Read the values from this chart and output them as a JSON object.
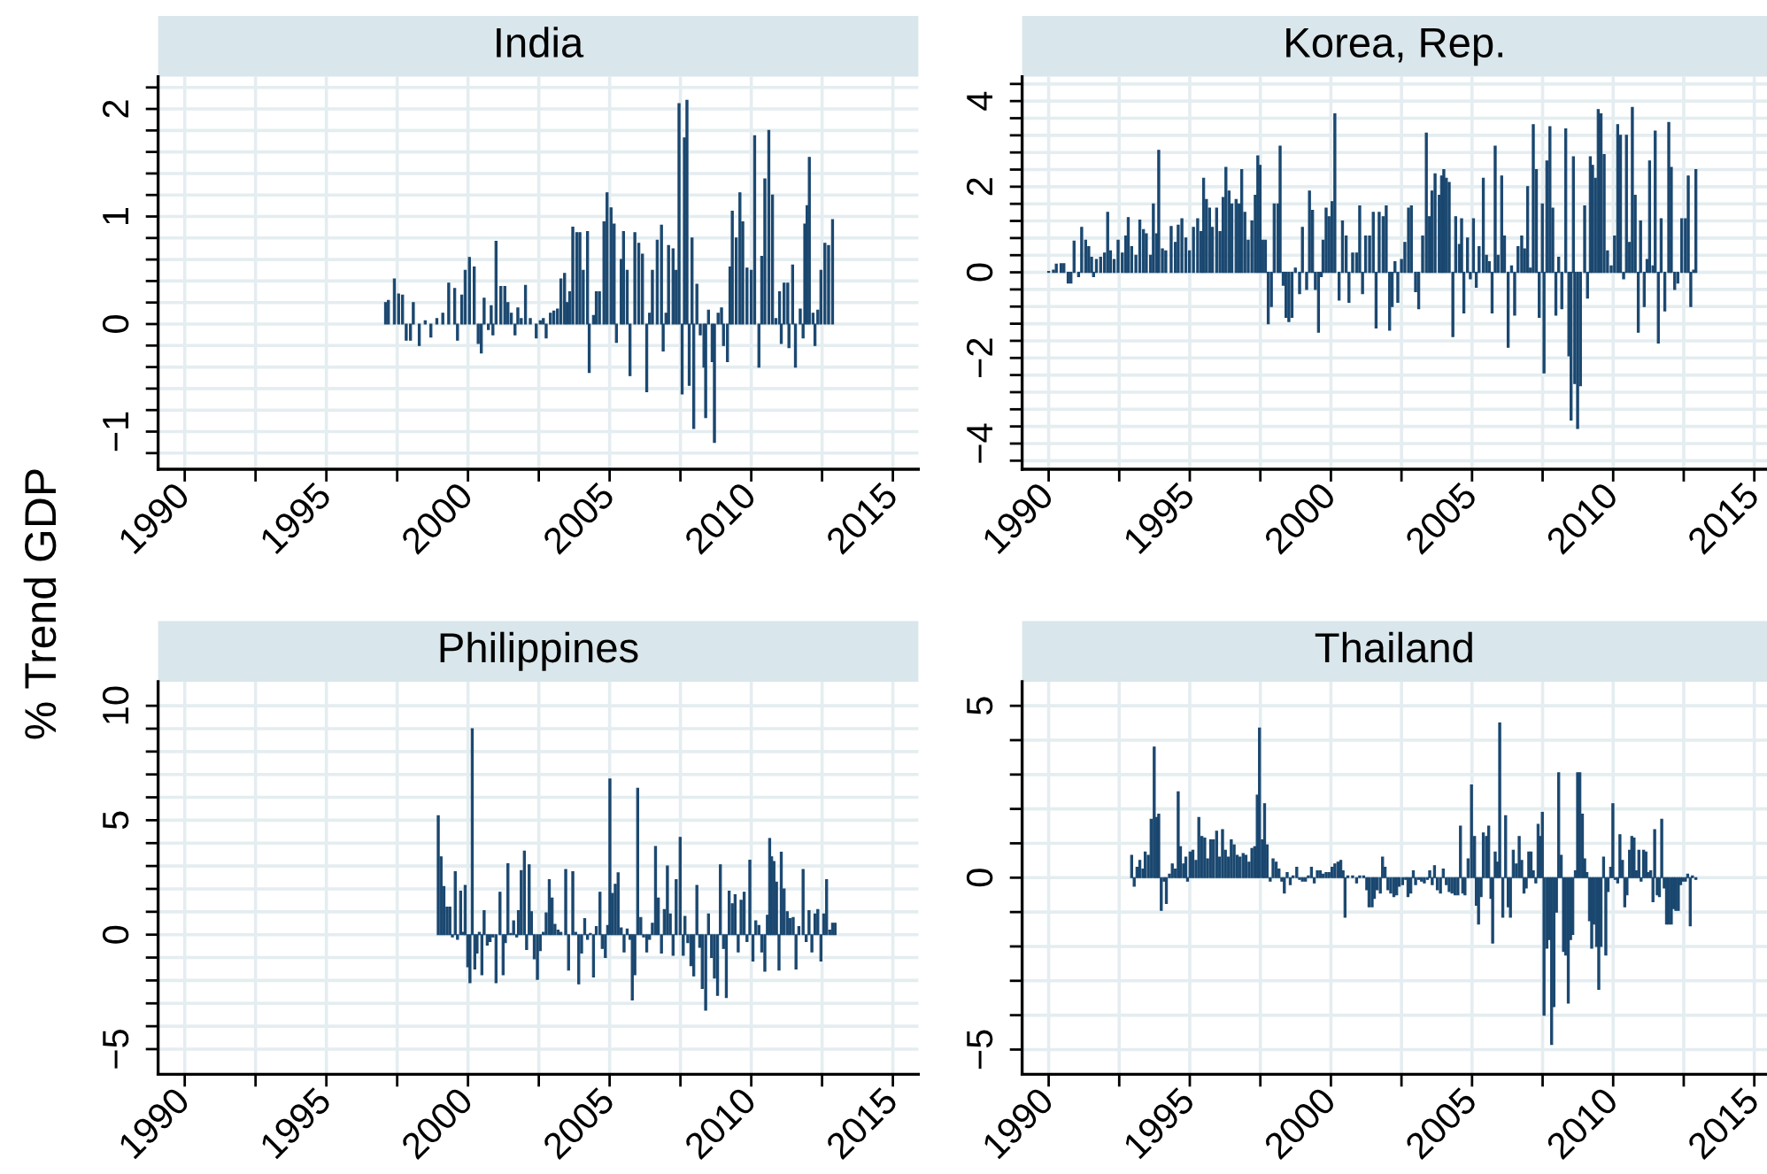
{
  "chart_data": [
    {
      "type": "bar",
      "title": "India",
      "ylabel": "% Trend GDP",
      "color": "#1a476f",
      "grid": true,
      "xlim": [
        1989.06,
        2015.9
      ],
      "ylim": [
        -1.35,
        2.3
      ],
      "xticks": [
        1990,
        {
          "value": 1992.5,
          "label": null
        },
        1995,
        {
          "value": 1997.5,
          "label": null
        },
        2000,
        {
          "value": 2002.5,
          "label": null
        },
        2005,
        {
          "value": 2007.5,
          "label": null
        },
        2010,
        {
          "value": 2012.5,
          "label": null
        },
        2015
      ],
      "yticks": [
        {
          "value": -1.2,
          "label": null
        },
        -1,
        {
          "value": -0.8,
          "label": null
        },
        {
          "value": -0.6,
          "label": null
        },
        {
          "value": -0.4,
          "label": null
        },
        {
          "value": -0.2,
          "label": null
        },
        0,
        {
          "value": 0.2,
          "label": null
        },
        {
          "value": 0.4,
          "label": null
        },
        {
          "value": 0.6,
          "label": null
        },
        {
          "value": 0.8,
          "label": null
        },
        1,
        {
          "value": 1.2,
          "label": null
        },
        {
          "value": 1.4,
          "label": null
        },
        {
          "value": 1.6,
          "label": null
        },
        {
          "value": 1.8,
          "label": null
        },
        2,
        {
          "value": 2.2,
          "label": null
        }
      ],
      "x": [
        1997.09,
        1997.19,
        1997.4,
        1997.55,
        1997.69,
        1997.82,
        1997.97,
        1998.07,
        1998.28,
        1998.49,
        1998.69,
        1998.9,
        1999.11,
        1999.32,
        1999.53,
        1999.63,
        1999.78,
        1999.9,
        2000.05,
        2000.22,
        2000.36,
        2000.47,
        2000.57,
        2000.72,
        2000.82,
        2000.88,
        2000.99,
        2001.16,
        2001.3,
        2001.41,
        2001.53,
        2001.66,
        2001.76,
        2001.88,
        2002.03,
        2002.2,
        2002.41,
        2002.55,
        2002.66,
        2002.76,
        2002.91,
        2003.03,
        2003.16,
        2003.28,
        2003.41,
        2003.49,
        2003.59,
        2003.7,
        2003.84,
        2003.95,
        2004.07,
        2004.22,
        2004.28,
        2004.43,
        2004.53,
        2004.64,
        2004.8,
        2004.91,
        2005.05,
        2005.16,
        2005.24,
        2005.41,
        2005.49,
        2005.62,
        2005.72,
        2005.89,
        2006.03,
        2006.16,
        2006.31,
        2006.41,
        2006.51,
        2006.68,
        2006.83,
        2006.89,
        2006.99,
        2007.08,
        2007.24,
        2007.35,
        2007.45,
        2007.56,
        2007.64,
        2007.73,
        2007.81,
        2007.91,
        2007.97,
        2008.08,
        2008.2,
        2008.33,
        2008.39,
        2008.49,
        2008.62,
        2008.7,
        2008.83,
        2008.95,
        2009.02,
        2009.16,
        2009.25,
        2009.33,
        2009.47,
        2009.6,
        2009.7,
        2009.85,
        2010.0,
        2010.12,
        2010.27,
        2010.37,
        2010.48,
        2010.62,
        2010.75,
        2010.87,
        2011.0,
        2011.06,
        2011.16,
        2011.29,
        2011.33,
        2011.46,
        2011.56,
        2011.73,
        2011.83,
        2011.89,
        2011.97,
        2012.05,
        2012.18,
        2012.25,
        2012.35,
        2012.46,
        2012.6,
        2012.73,
        2012.87
      ],
      "values": [
        0.2,
        0.22,
        0.42,
        0.28,
        0.27,
        -0.15,
        -0.15,
        0.2,
        -0.2,
        0.03,
        -0.12,
        0.05,
        0.1,
        0.38,
        0.33,
        -0.15,
        0.27,
        0.5,
        0.62,
        0.53,
        -0.18,
        -0.27,
        0.24,
        -0.05,
        0.17,
        -0.1,
        0.77,
        0.35,
        0.35,
        0.2,
        0.1,
        -0.1,
        0.15,
        0.05,
        0.36,
        0.05,
        -0.13,
        0.03,
        0.05,
        -0.13,
        0.1,
        0.12,
        0.14,
        0.42,
        0.47,
        0.2,
        0.3,
        0.9,
        0.85,
        0.85,
        0.5,
        0.86,
        -0.45,
        0.08,
        0.3,
        0.3,
        0.95,
        1.22,
        1.08,
        0.93,
        -0.17,
        0.6,
        0.86,
        0.5,
        -0.48,
        0.85,
        0.75,
        0.65,
        -0.63,
        0.1,
        0.5,
        0.78,
        0.92,
        -0.25,
        0.1,
        0.73,
        0.7,
        0.5,
        2.05,
        -0.65,
        1.73,
        2.08,
        -0.57,
        0.8,
        -0.97,
        0.37,
        -0.1,
        -0.4,
        -0.87,
        0.13,
        -0.35,
        -1.1,
        0.1,
        0.15,
        -0.2,
        -0.35,
        0.53,
        1.05,
        0.8,
        1.22,
        0.95,
        0.52,
        0.5,
        1.75,
        -0.4,
        0.63,
        1.35,
        1.8,
        1.2,
        0.05,
        0.3,
        -0.18,
        0.38,
        0.38,
        -0.22,
        0.55,
        -0.4,
        0.14,
        -0.13,
        0.93,
        1.1,
        1.55,
        0.1,
        -0.2,
        0.13,
        0.5,
        0.75,
        0.73,
        0.97
      ]
    },
    {
      "type": "bar",
      "title": "Korea, Rep.",
      "color": "#1a476f",
      "grid": true,
      "xlim": [
        1989.06,
        2015.45
      ],
      "ylim": [
        -4.6,
        4.57
      ],
      "xticks": [
        1990,
        {
          "value": 1992.5,
          "label": null
        },
        1995,
        {
          "value": 1997.5,
          "label": null
        },
        2000,
        {
          "value": 2002.5,
          "label": null
        },
        2005,
        {
          "value": 2007.5,
          "label": null
        },
        2010,
        {
          "value": 2012.5,
          "label": null
        },
        2015
      ],
      "yticks": [
        {
          "value": -4.4,
          "label": null
        },
        -4,
        {
          "value": -3.6,
          "label": null
        },
        {
          "value": -3.2,
          "label": null
        },
        {
          "value": -2.8,
          "label": null
        },
        {
          "value": -2.4,
          "label": null
        },
        -2,
        {
          "value": -1.6,
          "label": null
        },
        {
          "value": -1.2,
          "label": null
        },
        {
          "value": -0.8,
          "label": null
        },
        {
          "value": -0.4,
          "label": null
        },
        0,
        {
          "value": 0.4,
          "label": null
        },
        {
          "value": 0.8,
          "label": null
        },
        {
          "value": 1.2,
          "label": null
        },
        {
          "value": 1.6,
          "label": null
        },
        2,
        {
          "value": 2.4,
          "label": null
        },
        {
          "value": 2.8,
          "label": null
        },
        {
          "value": 3.2,
          "label": null
        },
        {
          "value": 3.6,
          "label": null
        },
        4,
        {
          "value": 4.4,
          "label": null
        }
      ],
      "x": [
        1990.0,
        1990.17,
        1990.27,
        1990.44,
        1990.54,
        1990.69,
        1990.79,
        1990.9,
        1991.06,
        1991.17,
        1991.31,
        1991.42,
        1991.52,
        1991.59,
        1991.69,
        1991.84,
        1991.98,
        1992.09,
        1992.19,
        1992.32,
        1992.46,
        1992.61,
        1992.73,
        1992.82,
        1992.94,
        1993.09,
        1993.23,
        1993.36,
        1993.46,
        1993.61,
        1993.71,
        1993.82,
        1993.9,
        1994.03,
        1994.15,
        1994.34,
        1994.49,
        1994.59,
        1994.72,
        1994.86,
        1994.99,
        1995.13,
        1995.28,
        1995.4,
        1995.49,
        1995.59,
        1995.7,
        1995.8,
        1995.95,
        1996.07,
        1996.18,
        1996.28,
        1996.39,
        1996.49,
        1996.64,
        1996.74,
        1996.84,
        1996.95,
        1997.07,
        1997.2,
        1997.32,
        1997.41,
        1997.49,
        1997.58,
        1997.68,
        1997.78,
        1997.89,
        1997.99,
        1998.12,
        1998.2,
        1998.31,
        1998.41,
        1998.51,
        1998.62,
        1998.74,
        1998.89,
        1998.99,
        1999.14,
        1999.24,
        1999.35,
        1999.45,
        1999.56,
        1999.66,
        1999.72,
        1999.83,
        1999.93,
        2000.04,
        2000.14,
        2000.29,
        2000.41,
        2000.54,
        2000.64,
        2000.77,
        2000.91,
        2001.02,
        2001.12,
        2001.23,
        2001.37,
        2001.5,
        2001.6,
        2001.71,
        2001.85,
        2001.96,
        2002.08,
        2002.17,
        2002.27,
        2002.37,
        2002.5,
        2002.62,
        2002.75,
        2002.85,
        2003.0,
        2003.11,
        2003.25,
        2003.38,
        2003.48,
        2003.58,
        2003.69,
        2003.84,
        2003.92,
        2004.0,
        2004.09,
        2004.19,
        2004.32,
        2004.42,
        2004.55,
        2004.63,
        2004.71,
        2004.84,
        2004.94,
        2005.05,
        2005.15,
        2005.25,
        2005.4,
        2005.51,
        2005.61,
        2005.71,
        2005.82,
        2005.92,
        2006.05,
        2006.15,
        2006.28,
        2006.4,
        2006.51,
        2006.63,
        2006.76,
        2006.86,
        2006.97,
        2007.07,
        2007.17,
        2007.28,
        2007.38,
        2007.49,
        2007.55,
        2007.65,
        2007.76,
        2007.86,
        2007.97,
        2008.07,
        2008.18,
        2008.32,
        2008.43,
        2008.51,
        2008.59,
        2008.64,
        2008.74,
        2008.84,
        2008.99,
        2009.09,
        2009.19,
        2009.27,
        2009.37,
        2009.47,
        2009.57,
        2009.68,
        2009.8,
        2009.93,
        2010.05,
        2010.16,
        2010.26,
        2010.37,
        2010.47,
        2010.58,
        2010.68,
        2010.78,
        2010.89,
        2010.97,
        2011.1,
        2011.2,
        2011.29,
        2011.41,
        2011.49,
        2011.6,
        2011.7,
        2011.83,
        2011.97,
        2012.06,
        2012.18,
        2012.29,
        2012.43,
        2012.56,
        2012.66,
        2012.75,
        2012.85,
        2012.93
      ],
      "values": [
        0.02,
        0.05,
        0.19,
        0.2,
        0.2,
        -0.25,
        -0.25,
        0.73,
        -0.1,
        1.05,
        0.75,
        0.6,
        0.35,
        -0.1,
        0.3,
        0.35,
        0.45,
        1.4,
        0.5,
        0.3,
        0.75,
        0.45,
        0.85,
        1.28,
        0.6,
        0.4,
        1.22,
        1.0,
        0.9,
        0.4,
        1.6,
        0.9,
        2.85,
        0.55,
        0.5,
        1.07,
        0.7,
        1.1,
        1.25,
        0.8,
        0.5,
        1.05,
        1.25,
        0.95,
        2.2,
        1.7,
        1.5,
        1.05,
        1.5,
        0.95,
        1.75,
        2.45,
        1.9,
        1.6,
        1.7,
        1.6,
        2.4,
        1.4,
        0.75,
        1.2,
        1.8,
        2.72,
        2.5,
        0.75,
        0.75,
        -1.2,
        -0.8,
        1.6,
        1.6,
        2.95,
        -0.3,
        -1.05,
        -1.15,
        -1.05,
        0.1,
        -0.5,
        1.05,
        -0.4,
        1.9,
        1.45,
        -0.4,
        -1.4,
        -0.1,
        0.75,
        1.5,
        1.3,
        1.65,
        3.7,
        -0.65,
        1.2,
        0.85,
        -0.7,
        0.45,
        0.45,
        1.55,
        -0.5,
        0.85,
        0.85,
        1.4,
        -1.3,
        1.4,
        1.3,
        1.55,
        -1.35,
        -0.8,
        0.25,
        -0.7,
        0.3,
        0.7,
        1.5,
        1.55,
        -0.45,
        -0.85,
        0.85,
        3.25,
        1.3,
        1.9,
        2.3,
        1.8,
        2.25,
        2.4,
        2.2,
        2.1,
        -1.5,
        1.3,
        0.65,
        1.25,
        -0.95,
        0.8,
        -0.15,
        1.25,
        -0.35,
        0.6,
        2.2,
        0.4,
        0.25,
        -0.95,
        2.95,
        0.4,
        2.25,
        0.85,
        -1.75,
        0.15,
        -1.0,
        0.6,
        0.85,
        0.55,
        2.0,
        0.1,
        3.45,
        2.4,
        -1.05,
        1.6,
        -2.35,
        2.6,
        3.4,
        1.5,
        -1.0,
        0.35,
        -0.85,
        3.35,
        -1.95,
        -3.45,
        2.7,
        -2.6,
        -3.65,
        -2.65,
        1.55,
        -0.6,
        2.7,
        2.5,
        2.2,
        3.8,
        3.7,
        2.75,
        0.5,
        0.15,
        0.85,
        3.45,
        3.2,
        -0.15,
        3.2,
        0.7,
        3.85,
        1.8,
        -1.4,
        1.2,
        -0.8,
        0.3,
        2.6,
        0.15,
        3.3,
        -1.65,
        1.25,
        -0.9,
        3.5,
        2.45,
        -0.4,
        -0.25,
        1.25,
        1.25,
        2.25,
        -0.8,
        0.05,
        2.4
      ]
    },
    {
      "type": "bar",
      "title": "Philippines",
      "color": "#1a476f",
      "grid": true,
      "xlim": [
        1989.06,
        2015.9
      ],
      "ylim": [
        -6.1,
        11.05
      ],
      "xticks": [
        1990,
        {
          "value": 1992.5,
          "label": null
        },
        1995,
        {
          "value": 1997.5,
          "label": null
        },
        2000,
        {
          "value": 2002.5,
          "label": null
        },
        2005,
        {
          "value": 2007.5,
          "label": null
        },
        2010,
        {
          "value": 2012.5,
          "label": null
        },
        2015
      ],
      "yticks": [
        -5,
        {
          "value": -4,
          "label": null
        },
        {
          "value": -3,
          "label": null
        },
        {
          "value": -2,
          "label": null
        },
        {
          "value": -1,
          "label": null
        },
        0,
        {
          "value": 1,
          "label": null
        },
        {
          "value": 2,
          "label": null
        },
        {
          "value": 3,
          "label": null
        },
        {
          "value": 4,
          "label": null
        },
        5,
        {
          "value": 6,
          "label": null
        },
        {
          "value": 7,
          "label": null
        },
        {
          "value": 8,
          "label": null
        },
        {
          "value": 9,
          "label": null
        },
        10
      ],
      "x": [
        1998.95,
        1999.05,
        1999.15,
        1999.26,
        1999.36,
        1999.45,
        1999.55,
        1999.63,
        1999.74,
        1999.84,
        1999.9,
        1999.99,
        2000.07,
        2000.15,
        2000.24,
        2000.32,
        2000.4,
        2000.49,
        2000.57,
        2000.68,
        2000.78,
        2000.88,
        2000.99,
        2001.13,
        2001.24,
        2001.32,
        2001.41,
        2001.51,
        2001.61,
        2001.72,
        2001.78,
        2001.88,
        2001.99,
        2002.07,
        2002.16,
        2002.24,
        2002.34,
        2002.45,
        2002.55,
        2002.66,
        2002.76,
        2002.87,
        2002.97,
        2003.07,
        2003.18,
        2003.28,
        2003.45,
        2003.55,
        2003.7,
        2003.8,
        2003.91,
        2004.01,
        2004.12,
        2004.22,
        2004.32,
        2004.43,
        2004.53,
        2004.66,
        2004.74,
        2004.85,
        2004.93,
        2005.01,
        2005.1,
        2005.2,
        2005.3,
        2005.41,
        2005.51,
        2005.62,
        2005.72,
        2005.8,
        2005.89,
        2005.99,
        2006.1,
        2006.2,
        2006.31,
        2006.41,
        2006.51,
        2006.62,
        2006.72,
        2006.83,
        2006.93,
        2007.04,
        2007.14,
        2007.24,
        2007.35,
        2007.49,
        2007.6,
        2007.66,
        2007.76,
        2007.87,
        2007.97,
        2008.08,
        2008.18,
        2008.27,
        2008.39,
        2008.49,
        2008.6,
        2008.7,
        2008.81,
        2008.91,
        2009.02,
        2009.12,
        2009.22,
        2009.33,
        2009.43,
        2009.54,
        2009.64,
        2009.75,
        2009.85,
        2009.95,
        2010.06,
        2010.16,
        2010.27,
        2010.37,
        2010.48,
        2010.57,
        2010.65,
        2010.72,
        2010.8,
        2010.89,
        2010.98,
        2011.06,
        2011.16,
        2011.27,
        2011.37,
        2011.48,
        2011.58,
        2011.68,
        2011.83,
        2011.94,
        2012.04,
        2012.14,
        2012.25,
        2012.35,
        2012.46,
        2012.56,
        2012.66,
        2012.77,
        2012.87,
        2012.96
      ],
      "values": [
        5.2,
        3.4,
        2.1,
        1.2,
        1.2,
        -0.1,
        2.75,
        -0.2,
        1.9,
        0.1,
        2.15,
        -1.4,
        -2.1,
        9.0,
        -1.5,
        -0.8,
        0.1,
        -1.75,
        1.05,
        -0.45,
        -0.3,
        -0.1,
        -2.1,
        1.85,
        -1.75,
        -0.35,
        3.1,
        0.05,
        0.6,
        -0.1,
        1.05,
        2.8,
        3.65,
        -0.65,
        3.05,
        1.0,
        -1.05,
        -1.95,
        -0.7,
        0.1,
        0.95,
        2.4,
        1.6,
        0.45,
        0.2,
        0.1,
        2.85,
        -1.55,
        2.75,
        0.1,
        -2.15,
        -0.8,
        0.7,
        -0.2,
        0.05,
        -1.85,
        0.35,
        1.85,
        -0.6,
        -1.0,
        0.4,
        6.8,
        1.8,
        2.2,
        2.7,
        0.3,
        -0.75,
        0.25,
        -0.2,
        -2.85,
        -1.75,
        6.4,
        0.75,
        -0.1,
        -0.75,
        -0.2,
        0.5,
        3.85,
        1.6,
        -0.8,
        1.1,
        3.0,
        0.9,
        -0.9,
        2.4,
        4.25,
        -0.9,
        0.8,
        -0.35,
        -1.35,
        -1.8,
        2.15,
        -0.55,
        -2.35,
        -3.3,
        0.9,
        -1.0,
        -1.9,
        -2.65,
        3.05,
        -0.6,
        -2.75,
        1.9,
        1.35,
        1.75,
        -0.75,
        1.5,
        1.85,
        -0.3,
        3.25,
        -1.15,
        0.6,
        0.4,
        -0.75,
        -1.6,
        0.85,
        4.2,
        3.4,
        3.2,
        2.3,
        -1.55,
        3.6,
        2.0,
        1.0,
        0.7,
        0.75,
        -1.5,
        0.35,
        2.85,
        -0.3,
        1.05,
        -0.75,
        0.9,
        1.1,
        -1.15,
        0.9,
        2.4,
        0.2,
        0.5,
        0.5
      ]
    },
    {
      "type": "bar",
      "title": "Thailand",
      "color": "#1a476f",
      "grid": true,
      "xlim": [
        1989.06,
        2015.45
      ],
      "ylim": [
        -5.72,
        5.7
      ],
      "xticks": [
        1990,
        {
          "value": 1992.5,
          "label": null
        },
        1995,
        {
          "value": 1997.5,
          "label": null
        },
        2000,
        {
          "value": 2002.5,
          "label": null
        },
        2005,
        {
          "value": 2007.5,
          "label": null
        },
        2010,
        {
          "value": 2012.5,
          "label": null
        },
        2015
      ],
      "yticks": [
        -5,
        {
          "value": -4,
          "label": null
        },
        {
          "value": -3,
          "label": null
        },
        {
          "value": -2,
          "label": null
        },
        {
          "value": -1,
          "label": null
        },
        0,
        {
          "value": 1,
          "label": null
        },
        {
          "value": 2,
          "label": null
        },
        {
          "value": 3,
          "label": null
        },
        {
          "value": 4,
          "label": null
        },
        5
      ],
      "x": [
        1992.94,
        1993.03,
        1993.13,
        1993.23,
        1993.34,
        1993.42,
        1993.53,
        1993.63,
        1993.74,
        1993.82,
        1993.9,
        1993.99,
        1994.09,
        1994.17,
        1994.28,
        1994.38,
        1994.49,
        1994.59,
        1994.67,
        1994.78,
        1994.86,
        1994.92,
        1995.01,
        1995.11,
        1995.22,
        1995.32,
        1995.43,
        1995.53,
        1995.63,
        1995.74,
        1995.84,
        1995.95,
        1996.05,
        1996.16,
        1996.26,
        1996.36,
        1996.47,
        1996.57,
        1996.68,
        1996.78,
        1996.89,
        1996.99,
        1997.1,
        1997.2,
        1997.3,
        1997.39,
        1997.47,
        1997.57,
        1997.65,
        1997.74,
        1997.85,
        1997.95,
        1998.06,
        1998.16,
        1998.26,
        1998.35,
        1998.45,
        1998.56,
        1998.66,
        1998.79,
        1998.89,
        1998.99,
        1999.1,
        1999.2,
        1999.31,
        1999.41,
        1999.52,
        1999.62,
        1999.72,
        1999.83,
        1999.93,
        2000.04,
        2000.14,
        2000.25,
        2000.35,
        2000.43,
        2000.5,
        2000.6,
        2000.77,
        2000.91,
        2001.02,
        2001.16,
        2001.27,
        2001.35,
        2001.46,
        2001.54,
        2001.64,
        2001.75,
        2001.83,
        2001.92,
        2002.02,
        2002.12,
        2002.23,
        2002.33,
        2002.42,
        2002.54,
        2002.65,
        2002.73,
        2002.83,
        2002.92,
        2003.0,
        2003.11,
        2003.21,
        2003.31,
        2003.42,
        2003.5,
        2003.59,
        2003.67,
        2003.77,
        2003.88,
        2003.98,
        2004.09,
        2004.19,
        2004.29,
        2004.4,
        2004.5,
        2004.59,
        2004.67,
        2004.75,
        2004.86,
        2004.98,
        2005.09,
        2005.15,
        2005.23,
        2005.32,
        2005.4,
        2005.51,
        2005.59,
        2005.67,
        2005.73,
        2005.82,
        2005.9,
        2005.98,
        2006.09,
        2006.19,
        2006.28,
        2006.36,
        2006.46,
        2006.57,
        2006.67,
        2006.76,
        2006.84,
        2006.92,
        2007.01,
        2007.09,
        2007.17,
        2007.26,
        2007.34,
        2007.42,
        2007.49,
        2007.55,
        2007.65,
        2007.74,
        2007.82,
        2007.9,
        2007.99,
        2008.07,
        2008.16,
        2008.24,
        2008.32,
        2008.41,
        2008.49,
        2008.57,
        2008.66,
        2008.74,
        2008.82,
        2008.91,
        2008.99,
        2009.07,
        2009.16,
        2009.24,
        2009.32,
        2009.41,
        2009.49,
        2009.57,
        2009.66,
        2009.74,
        2009.82,
        2009.91,
        2009.99,
        2010.07,
        2010.16,
        2010.24,
        2010.33,
        2010.41,
        2010.49,
        2010.58,
        2010.66,
        2010.74,
        2010.83,
        2010.91,
        2010.99,
        2011.08,
        2011.16,
        2011.24,
        2011.33,
        2011.41,
        2011.47,
        2011.56,
        2011.64,
        2011.72,
        2011.81,
        2011.89,
        2011.97,
        2012.06,
        2012.14,
        2012.22,
        2012.31,
        2012.39,
        2012.47,
        2012.56,
        2012.64,
        2012.73,
        2012.81,
        2012.93
      ],
      "values": [
        0.65,
        -0.25,
        0.3,
        0.5,
        0.25,
        0.75,
        0.65,
        1.7,
        3.8,
        1.75,
        1.85,
        -0.95,
        -0.1,
        -0.75,
        0.1,
        0.4,
        0.25,
        2.5,
        0.9,
        0.4,
        0.6,
        -0.1,
        0.75,
        0.8,
        0.5,
        1.75,
        1.2,
        1.15,
        0.55,
        1.1,
        1.1,
        1.35,
        0.6,
        1.4,
        0.8,
        0.6,
        1.1,
        0.95,
        0.65,
        0.6,
        0.7,
        0.65,
        0.45,
        0.85,
        0.9,
        2.4,
        4.35,
        1.1,
        2.15,
        0.95,
        -0.1,
        0.55,
        0.45,
        0.25,
        -0.1,
        -0.45,
        0.15,
        -0.2,
        0.05,
        0.3,
        -0.05,
        -0.1,
        -0.1,
        0.05,
        0.3,
        -0.15,
        0.2,
        0.2,
        0.1,
        0.15,
        0.15,
        0.3,
        0.4,
        0.45,
        0.5,
        0.2,
        -1.15,
        0.05,
        0.05,
        -0.15,
        0.05,
        0.05,
        -0.35,
        -0.85,
        -0.85,
        -0.6,
        -0.35,
        -0.45,
        0.6,
        0.3,
        -0.35,
        -0.45,
        -0.55,
        -0.5,
        -0.25,
        -0.2,
        -0.05,
        -0.55,
        -0.45,
        0.2,
        -0.2,
        -0.05,
        -0.1,
        -0.15,
        -0.05,
        0.2,
        -0.2,
        0.35,
        -0.35,
        -0.45,
        0.25,
        -0.2,
        -0.4,
        -0.45,
        -0.5,
        -0.5,
        1.5,
        -0.45,
        -0.5,
        0.55,
        2.7,
        1.2,
        -0.8,
        -1.35,
        -0.55,
        1.3,
        1.2,
        1.5,
        -0.6,
        -1.9,
        0.75,
        0.45,
        4.5,
        -1.15,
        1.8,
        -0.85,
        -1.15,
        0.8,
        0.4,
        1.2,
        0.5,
        -0.45,
        -0.3,
        0.75,
        0.75,
        0.2,
        -0.15,
        1.55,
        1.2,
        1.9,
        -4.0,
        -2.05,
        -1.8,
        -4.85,
        -3.75,
        -1.0,
        3.05,
        0.65,
        -2.15,
        -2.25,
        -3.65,
        -1.8,
        -1.65,
        0.2,
        3.05,
        3.05,
        1.85,
        0.55,
        0.15,
        -1.25,
        -2.05,
        -1.35,
        -2.0,
        -3.25,
        -2.0,
        0.6,
        -2.25,
        -0.4,
        0.3,
        2.15,
        -0.05,
        -0.15,
        1.25,
        0.5,
        -0.85,
        -0.5,
        0.8,
        1.2,
        1.15,
        0.2,
        0.8,
        -0.1,
        0.8,
        0.75,
        0.15,
        0.2,
        -0.7,
        1.4,
        -0.5,
        -0.55,
        1.7,
        -0.3,
        -1.35,
        -1.35,
        -1.35,
        -0.9,
        -0.95,
        -0.95,
        -0.2,
        -0.1,
        -0.1,
        0.1,
        -1.4,
        0.05,
        -0.05
      ]
    }
  ]
}
